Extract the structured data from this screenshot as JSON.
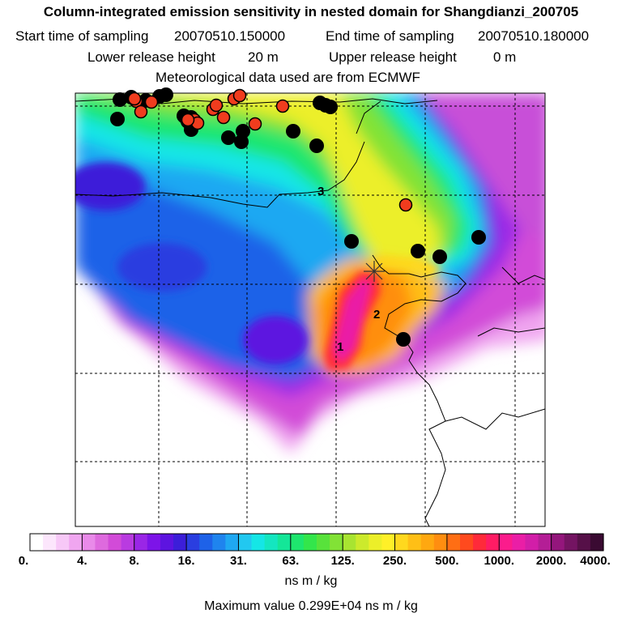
{
  "title": "Column-integrated emission sensitivity in nested domain for Shangdianzi_200705",
  "start_label": "Start time of sampling",
  "start_value": "20070510.150000",
  "end_label": "End time of sampling",
  "end_value": "20070510.180000",
  "lower_label": "Lower release height",
  "lower_value": "20 m",
  "upper_label": "Upper release height",
  "upper_value": "0 m",
  "met_text": "Meteorological data used are from ECMWF",
  "colorbar": {
    "labels": [
      "0.",
      "4.",
      "8.",
      "16.",
      "31.",
      "63.",
      "125.",
      "250.",
      "500.",
      "1000.",
      "2000.",
      "4000."
    ],
    "colors": [
      "#ffffff",
      "#fce6fc",
      "#f7c8f7",
      "#f0a6f0",
      "#e98ae9",
      "#de6ade",
      "#d24bd8",
      "#b93be0",
      "#9a26e6",
      "#7d14e8",
      "#5d14e0",
      "#3c1ed9",
      "#2a3ee0",
      "#1e62e8",
      "#1f84ee",
      "#1fa8f2",
      "#22c8f0",
      "#15e6e6",
      "#14e6c0",
      "#14e698",
      "#1ee66e",
      "#33e64b",
      "#58e23b",
      "#82e236",
      "#a8e431",
      "#ccea2c",
      "#ecef29",
      "#fff028",
      "#ffd81e",
      "#ffbf16",
      "#ffa810",
      "#ff8e10",
      "#ff6e14",
      "#ff4a1e",
      "#ff2a3a",
      "#ff1c64",
      "#fb1c8c",
      "#ea1ea6",
      "#d21ea8",
      "#b41e96",
      "#94167c",
      "#741462",
      "#561048",
      "#3a0a32"
    ]
  },
  "unit_label": "ns m / kg",
  "max_text": "Maximum value  0.299E+04 ns m / kg",
  "map": {
    "site_labels": [
      "1",
      "2",
      "3"
    ],
    "black_points": 24,
    "red_points": 15
  }
}
